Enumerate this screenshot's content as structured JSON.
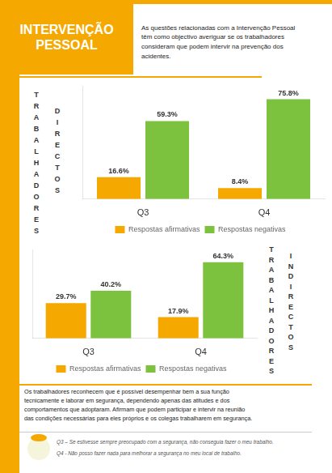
{
  "title": "INTERVENÇÃO\nPESSOAL",
  "subtitle": "As questões relacionadas com a Intervenção Pessoal\ntêm como objectivo averiguar se os trabalhadores\nconsideram que podem intervir na prevenção dos\nacidentes.",
  "color": "#F5A800",
  "annotations": [
    "Os trabalhadores reconhecem que é possível desempenhar bem a sua função\ntecnicamente e laborar em segurança, dependendo apenas das atitudes e dos\ncomportamentos que adoptaram. Afirmam que podem participar e intervir na reunião\ndas condições necessárias para eles próprios e os colegas trabalharem em segurança.",
    "Q3 – Se estivesse sempre preocupado com a segurança, não conseguia fazer o meu trabalho.",
    "Q4 - Não posso fazer nada para melhorar a segurança no meu local de trabalho."
  ],
  "chart_data": [
    {
      "type": "bar",
      "categories": [
        "Q3",
        "Q4"
      ],
      "series": [
        {
          "name": "Respostas afirmativas",
          "color": "#F5A800",
          "values": [
            16.6,
            8.4
          ],
          "value_labels": [
            "16.6%",
            "8.4%"
          ]
        },
        {
          "name": "Respostas negativas",
          "color": "#7DC23E",
          "values": [
            59.3,
            75.8
          ],
          "value_labels": [
            "59.3%",
            "75.8%"
          ]
        }
      ],
      "ylim": [
        0,
        86
      ],
      "grid": false,
      "legend": "bottom",
      "data_labels": true,
      "tick_labels": "x",
      "annotations": [
        "T\nR\nA\nB\nA\nL\nH\nA\nD\nO\nR\nE\nS",
        "D\nI\nR\nE\nC\nT\nO\nS"
      ]
    },
    {
      "type": "bar",
      "categories": [
        "Q3",
        "Q4"
      ],
      "series": [
        {
          "name": "Respostas afirmativas",
          "color": "#F5A800",
          "values": [
            29.7,
            17.9
          ],
          "value_labels": [
            "29.7%",
            "17.9%"
          ]
        },
        {
          "name": "Respostas negativas",
          "color": "#7DC23E",
          "values": [
            40.2,
            64.3
          ],
          "value_labels": [
            "40.2%",
            "64.3%"
          ]
        }
      ],
      "ylim": [
        0,
        75
      ],
      "grid": false,
      "legend": "bottom",
      "data_labels": true,
      "tick_labels": "x",
      "annotations": [
        "T\nR\nA\nB\nA\nL\nH\nA\nD\nO\nR\nE\nS",
        "I\nN\nD\nI\nR\nE\nC\nT\nO\nS"
      ]
    }
  ]
}
